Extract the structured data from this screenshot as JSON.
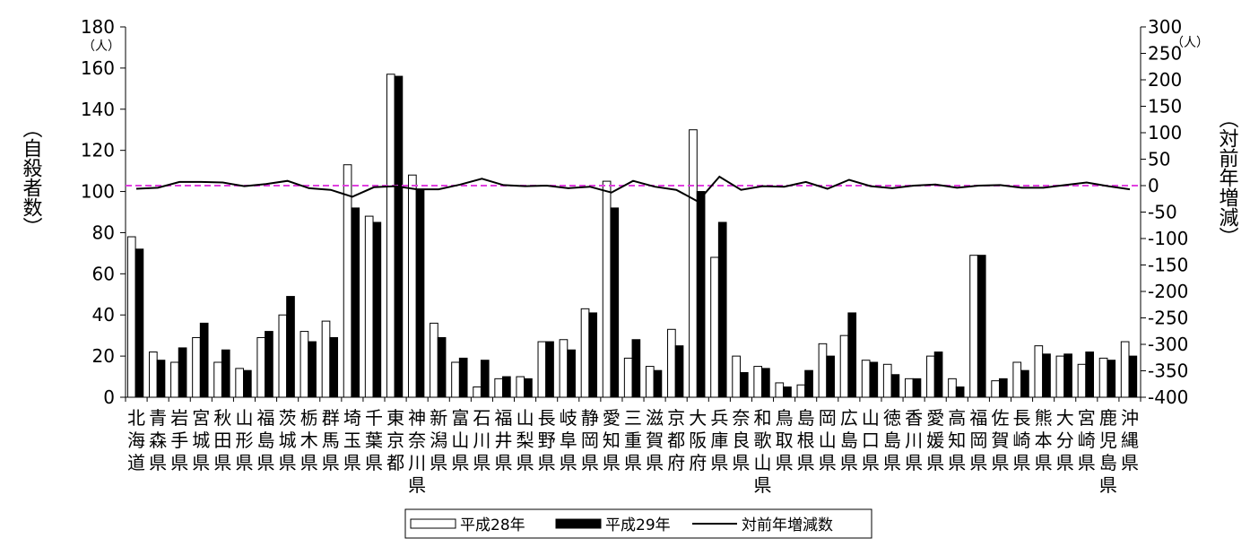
{
  "chart_data": {
    "type": "bar",
    "categories": [
      [
        "北",
        "海",
        "道"
      ],
      [
        "青",
        "森",
        "県"
      ],
      [
        "岩",
        "手",
        "県"
      ],
      [
        "宮",
        "城",
        "県"
      ],
      [
        "秋",
        "田",
        "県"
      ],
      [
        "山",
        "形",
        "県"
      ],
      [
        "福",
        "島",
        "県"
      ],
      [
        "茨",
        "城",
        "県"
      ],
      [
        "栃",
        "木",
        "県"
      ],
      [
        "群",
        "馬",
        "県"
      ],
      [
        "埼",
        "玉",
        "県"
      ],
      [
        "千",
        "葉",
        "県"
      ],
      [
        "東",
        "京",
        "都"
      ],
      [
        "神",
        "奈",
        "川",
        "県"
      ],
      [
        "新",
        "潟",
        "県"
      ],
      [
        "富",
        "山",
        "県"
      ],
      [
        "石",
        "川",
        "県"
      ],
      [
        "福",
        "井",
        "県"
      ],
      [
        "山",
        "梨",
        "県"
      ],
      [
        "長",
        "野",
        "県"
      ],
      [
        "岐",
        "阜",
        "県"
      ],
      [
        "静",
        "岡",
        "県"
      ],
      [
        "愛",
        "知",
        "県"
      ],
      [
        "三",
        "重",
        "県"
      ],
      [
        "滋",
        "賀",
        "県"
      ],
      [
        "京",
        "都",
        "府"
      ],
      [
        "大",
        "阪",
        "府"
      ],
      [
        "兵",
        "庫",
        "県"
      ],
      [
        "奈",
        "良",
        "県"
      ],
      [
        "和",
        "歌",
        "山",
        "県"
      ],
      [
        "鳥",
        "取",
        "県"
      ],
      [
        "島",
        "根",
        "県"
      ],
      [
        "岡",
        "山",
        "県"
      ],
      [
        "広",
        "島",
        "県"
      ],
      [
        "山",
        "口",
        "県"
      ],
      [
        "徳",
        "島",
        "県"
      ],
      [
        "香",
        "川",
        "県"
      ],
      [
        "愛",
        "媛",
        "県"
      ],
      [
        "高",
        "知",
        "県"
      ],
      [
        "福",
        "岡",
        "県"
      ],
      [
        "佐",
        "賀",
        "県"
      ],
      [
        "長",
        "崎",
        "県"
      ],
      [
        "熊",
        "本",
        "県"
      ],
      [
        "大",
        "分",
        "県"
      ],
      [
        "宮",
        "崎",
        "県"
      ],
      [
        "鹿",
        "児",
        "島",
        "県"
      ],
      [
        "沖",
        "縄",
        "県"
      ]
    ],
    "series": [
      {
        "name": "平成28年",
        "kind": "bar",
        "fill": "#ffffff",
        "stroke": "#000000",
        "values": [
          78,
          22,
          17,
          29,
          17,
          14,
          29,
          40,
          32,
          37,
          113,
          88,
          157,
          108,
          36,
          17,
          5,
          9,
          10,
          27,
          28,
          43,
          105,
          19,
          15,
          33,
          130,
          68,
          20,
          15,
          7,
          6,
          26,
          30,
          18,
          16,
          9,
          20,
          9,
          69,
          8,
          17,
          25,
          20,
          16,
          19,
          27
        ]
      },
      {
        "name": "平成29年",
        "kind": "bar",
        "fill": "#000000",
        "stroke": "#000000",
        "values": [
          72,
          18,
          24,
          36,
          23,
          13,
          32,
          49,
          27,
          29,
          92,
          85,
          156,
          101,
          29,
          19,
          18,
          10,
          9,
          27,
          23,
          41,
          92,
          28,
          13,
          25,
          100,
          85,
          12,
          14,
          5,
          13,
          20,
          41,
          17,
          11,
          9,
          22,
          5,
          69,
          9,
          13,
          21,
          21,
          22,
          18,
          20
        ]
      },
      {
        "name": "対前年増減数",
        "kind": "line",
        "axis": "right",
        "color": "#000000",
        "values": [
          -6,
          -4,
          7,
          7,
          6,
          -1,
          3,
          9,
          -5,
          -8,
          -21,
          -3,
          -1,
          -7,
          -7,
          2,
          13,
          1,
          -1,
          0,
          -5,
          -2,
          -13,
          9,
          -2,
          -8,
          -30,
          17,
          -8,
          -1,
          -2,
          7,
          -6,
          11,
          -1,
          -5,
          0,
          2,
          -4,
          0,
          1,
          -4,
          -4,
          1,
          6,
          -1,
          -7
        ]
      }
    ],
    "ylabel": "（自殺者数）",
    "y2label": "（対前年増減）",
    "ylim": [
      0,
      180
    ],
    "yticks": [
      0,
      20,
      40,
      60,
      80,
      100,
      120,
      140,
      160,
      180
    ],
    "y2lim": [
      -400,
      300
    ],
    "y2ticks": [
      300,
      250,
      200,
      150,
      100,
      50,
      0,
      -50,
      -100,
      -150,
      -200,
      -250,
      -300,
      -350,
      -400
    ],
    "yunit": "（人）",
    "y2unit": "（人）",
    "reference_line": {
      "axis": "right",
      "value": 0,
      "color": "#e040e0",
      "style": "dashed"
    },
    "legend": {
      "position": "bottom",
      "labels": [
        "平成28年",
        "平成29年",
        "対前年増減数"
      ]
    }
  }
}
